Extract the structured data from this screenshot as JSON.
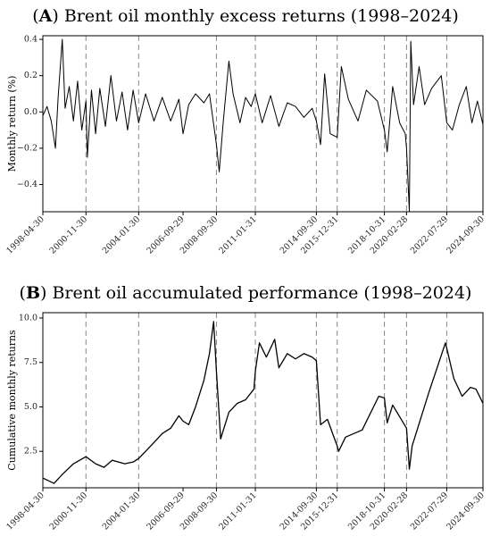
{
  "chart_data": [
    {
      "type": "line",
      "title_letter": "A",
      "title_text": "Brent oil monthly excess returns (1998–2024)",
      "ylabel": "Monthly return (%)",
      "ylim": [
        -0.55,
        0.42
      ],
      "yticks": [
        0.4,
        0.2,
        0.0,
        -0.2,
        -0.4
      ],
      "ytick_labels": [
        "0.4",
        "0.2",
        "0.0",
        "−0.2",
        "−0.4"
      ],
      "grid": false,
      "xlim": [
        "1998-04-30",
        "2024-09-30"
      ],
      "xticks": [
        "1998-04-30",
        "2000-11-30",
        "2004-01-30",
        "2006-09-29",
        "2008-09-30",
        "2011-01-31",
        "2014-09-30",
        "2015-12-31",
        "2018-10-31",
        "2020-02-28",
        "2022-07-29",
        "2024-09-30"
      ],
      "vlines": [
        "2000-11-30",
        "2004-01-30",
        "2008-09-30",
        "2011-01-31",
        "2014-09-30",
        "2015-12-31",
        "2018-10-31",
        "2020-02-28",
        "2022-07-29"
      ],
      "series": [
        {
          "points": [
            [
              "1998-04-30",
              -0.02
            ],
            [
              "1998-07-31",
              0.03
            ],
            [
              "1998-10-31",
              -0.05
            ],
            [
              "1999-01-31",
              -0.2
            ],
            [
              "1999-03-31",
              0.08
            ],
            [
              "1999-06-30",
              0.4
            ],
            [
              "1999-08-31",
              0.02
            ],
            [
              "1999-11-30",
              0.14
            ],
            [
              "2000-02-29",
              -0.05
            ],
            [
              "2000-05-31",
              0.17
            ],
            [
              "2000-08-31",
              -0.1
            ],
            [
              "2000-11-30",
              0.06
            ],
            [
              "2000-12-31",
              -0.25
            ],
            [
              "2001-03-31",
              0.12
            ],
            [
              "2001-06-30",
              -0.12
            ],
            [
              "2001-09-30",
              0.13
            ],
            [
              "2002-01-31",
              -0.08
            ],
            [
              "2002-05-31",
              0.2
            ],
            [
              "2002-09-30",
              -0.05
            ],
            [
              "2003-01-31",
              0.11
            ],
            [
              "2003-05-31",
              -0.1
            ],
            [
              "2003-09-30",
              0.12
            ],
            [
              "2004-01-30",
              -0.06
            ],
            [
              "2004-06-30",
              0.1
            ],
            [
              "2004-12-31",
              -0.05
            ],
            [
              "2005-06-30",
              0.08
            ],
            [
              "2005-12-31",
              -0.05
            ],
            [
              "2006-06-30",
              0.07
            ],
            [
              "2006-09-29",
              -0.12
            ],
            [
              "2007-01-31",
              0.04
            ],
            [
              "2007-06-30",
              0.1
            ],
            [
              "2007-12-31",
              0.05
            ],
            [
              "2008-04-30",
              0.1
            ],
            [
              "2008-09-30",
              -0.18
            ],
            [
              "2008-11-30",
              -0.33
            ],
            [
              "2009-02-28",
              -0.05
            ],
            [
              "2009-06-30",
              0.28
            ],
            [
              "2009-09-30",
              0.1
            ],
            [
              "2010-02-28",
              -0.06
            ],
            [
              "2010-06-30",
              0.08
            ],
            [
              "2010-10-31",
              0.03
            ],
            [
              "2011-01-31",
              0.1
            ],
            [
              "2011-06-30",
              -0.06
            ],
            [
              "2011-12-31",
              0.09
            ],
            [
              "2012-06-30",
              -0.08
            ],
            [
              "2012-12-31",
              0.05
            ],
            [
              "2013-06-30",
              0.03
            ],
            [
              "2013-12-31",
              -0.03
            ],
            [
              "2014-06-30",
              0.02
            ],
            [
              "2014-09-30",
              -0.05
            ],
            [
              "2014-12-31",
              -0.18
            ],
            [
              "2015-03-31",
              0.21
            ],
            [
              "2015-07-31",
              -0.12
            ],
            [
              "2015-12-31",
              -0.14
            ],
            [
              "2016-03-31",
              0.25
            ],
            [
              "2016-08-31",
              0.07
            ],
            [
              "2017-03-31",
              -0.05
            ],
            [
              "2017-09-30",
              0.12
            ],
            [
              "2018-05-31",
              0.06
            ],
            [
              "2018-10-31",
              -0.1
            ],
            [
              "2018-12-31",
              -0.22
            ],
            [
              "2019-04-30",
              0.14
            ],
            [
              "2019-09-30",
              -0.06
            ],
            [
              "2020-01-31",
              -0.12
            ],
            [
              "2020-02-28",
              -0.2
            ],
            [
              "2020-04-30",
              -0.55
            ],
            [
              "2020-05-31",
              0.39
            ],
            [
              "2020-07-31",
              0.04
            ],
            [
              "2020-11-30",
              0.25
            ],
            [
              "2021-03-31",
              0.04
            ],
            [
              "2021-08-31",
              0.13
            ],
            [
              "2022-03-31",
              0.2
            ],
            [
              "2022-07-29",
              -0.06
            ],
            [
              "2022-11-30",
              -0.1
            ],
            [
              "2023-04-30",
              0.04
            ],
            [
              "2023-09-30",
              0.14
            ],
            [
              "2024-01-31",
              -0.06
            ],
            [
              "2024-05-31",
              0.06
            ],
            [
              "2024-09-30",
              -0.07
            ]
          ]
        }
      ]
    },
    {
      "type": "line",
      "title_letter": "B",
      "title_text": "Brent oil accumulated performance (1998–2024)",
      "ylabel": "Cumulative monthly returns",
      "ylim": [
        0.45,
        10.3
      ],
      "yticks": [
        10.0,
        7.5,
        5.0,
        2.5
      ],
      "ytick_labels": [
        "10.0",
        "7.5",
        "5.0",
        "2.5"
      ],
      "grid": false,
      "xlim": [
        "1998-04-30",
        "2024-09-30"
      ],
      "xticks": [
        "1998-04-30",
        "2000-11-30",
        "2004-01-30",
        "2006-09-29",
        "2008-09-30",
        "2011-01-31",
        "2014-09-30",
        "2015-12-31",
        "2018-10-31",
        "2020-02-28",
        "2022-07-29",
        "2024-09-30"
      ],
      "vlines": [
        "2000-11-30",
        "2004-01-30",
        "2008-09-30",
        "2011-01-31",
        "2014-09-30",
        "2015-12-31",
        "2018-10-31",
        "2020-02-28",
        "2022-07-29"
      ],
      "series": [
        {
          "points": [
            [
              "1998-04-30",
              1.0
            ],
            [
              "1998-12-31",
              0.7
            ],
            [
              "1999-06-30",
              1.2
            ],
            [
              "2000-02-28",
              1.8
            ],
            [
              "2000-11-30",
              2.2
            ],
            [
              "2001-06-30",
              1.8
            ],
            [
              "2001-12-31",
              1.6
            ],
            [
              "2002-06-30",
              2.0
            ],
            [
              "2003-03-31",
              1.8
            ],
            [
              "2003-09-30",
              1.9
            ],
            [
              "2004-01-30",
              2.1
            ],
            [
              "2004-06-30",
              2.5
            ],
            [
              "2004-12-31",
              3.0
            ],
            [
              "2005-06-30",
              3.5
            ],
            [
              "2005-12-31",
              3.8
            ],
            [
              "2006-06-30",
              4.5
            ],
            [
              "2006-09-29",
              4.2
            ],
            [
              "2007-01-31",
              4.0
            ],
            [
              "2007-06-30",
              5.0
            ],
            [
              "2007-12-31",
              6.5
            ],
            [
              "2008-04-30",
              8.0
            ],
            [
              "2008-07-31",
              9.8
            ],
            [
              "2008-09-30",
              7.0
            ],
            [
              "2008-12-31",
              3.2
            ],
            [
              "2009-06-30",
              4.7
            ],
            [
              "2009-12-31",
              5.2
            ],
            [
              "2010-06-30",
              5.4
            ],
            [
              "2010-12-31",
              6.0
            ],
            [
              "2011-01-31",
              7.0
            ],
            [
              "2011-04-30",
              8.6
            ],
            [
              "2011-09-30",
              7.8
            ],
            [
              "2012-03-31",
              8.8
            ],
            [
              "2012-06-30",
              7.2
            ],
            [
              "2012-12-31",
              8.0
            ],
            [
              "2013-06-30",
              7.7
            ],
            [
              "2013-12-31",
              8.0
            ],
            [
              "2014-06-30",
              7.8
            ],
            [
              "2014-09-30",
              7.6
            ],
            [
              "2014-12-31",
              4.0
            ],
            [
              "2015-05-31",
              4.3
            ],
            [
              "2015-12-31",
              2.8
            ],
            [
              "2016-01-31",
              2.5
            ],
            [
              "2016-06-30",
              3.3
            ],
            [
              "2017-06-30",
              3.7
            ],
            [
              "2018-06-30",
              5.6
            ],
            [
              "2018-10-31",
              5.5
            ],
            [
              "2018-12-31",
              4.1
            ],
            [
              "2019-04-30",
              5.1
            ],
            [
              "2020-02-28",
              3.8
            ],
            [
              "2020-04-30",
              1.5
            ],
            [
              "2020-06-30",
              2.8
            ],
            [
              "2021-06-30",
              5.8
            ],
            [
              "2022-06-30",
              8.6
            ],
            [
              "2022-07-29",
              8.3
            ],
            [
              "2022-12-31",
              6.6
            ],
            [
              "2023-06-30",
              5.6
            ],
            [
              "2023-12-31",
              6.1
            ],
            [
              "2024-04-30",
              6.0
            ],
            [
              "2024-09-30",
              5.2
            ]
          ]
        }
      ]
    }
  ]
}
